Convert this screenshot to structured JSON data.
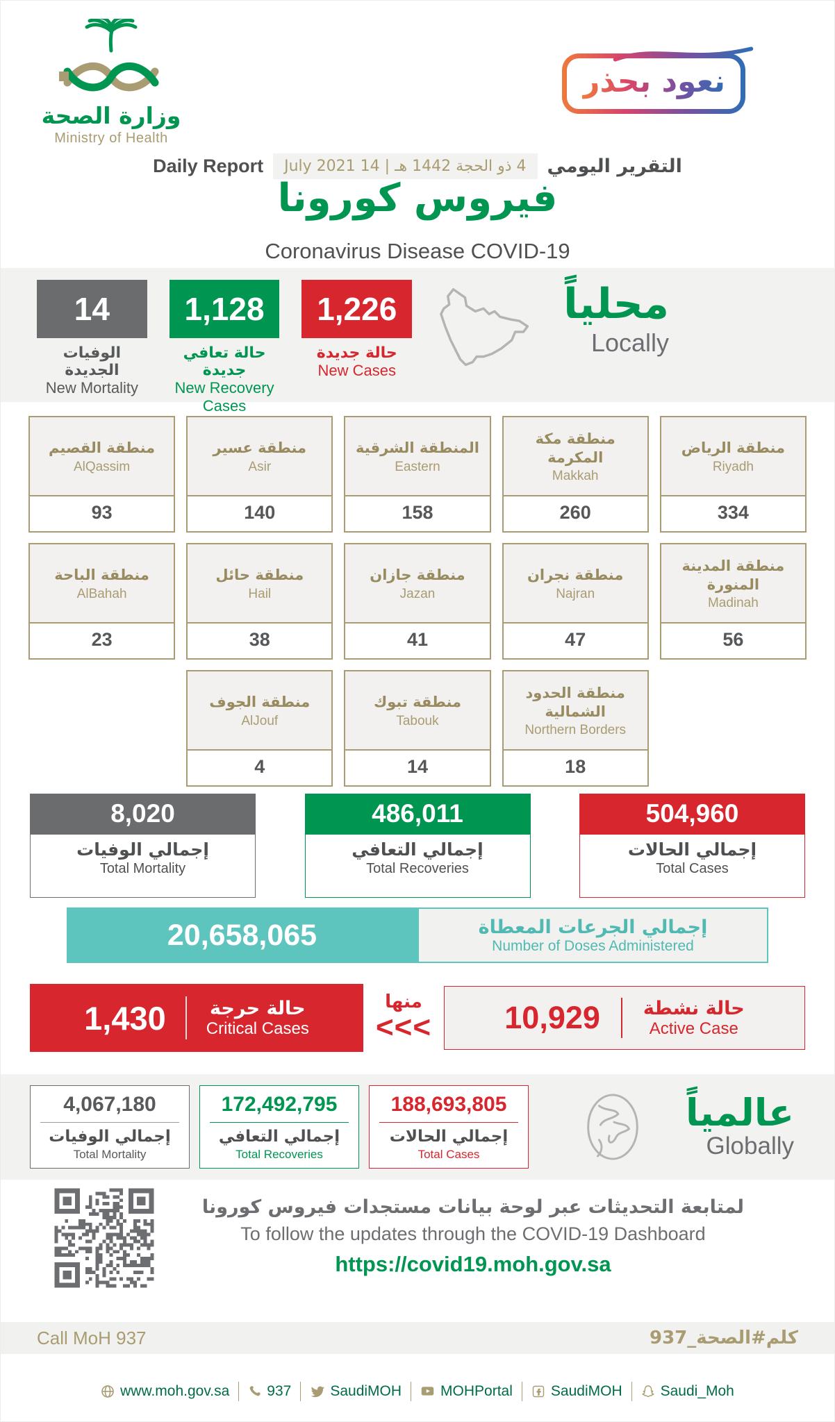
{
  "colors": {
    "green": "#009551",
    "red": "#d7262d",
    "gray": "#6b6c6e",
    "teal": "#5ec4be",
    "gold": "#a99c72"
  },
  "header": {
    "ministry_ar": "وزارة الصحة",
    "ministry_en": "Ministry of Health",
    "badge_ar": "نعود بحذر",
    "daily_report_en": "Daily Report",
    "date_text": "4 ذو الحجة 1442 هـ | 14 July 2021",
    "daily_report_ar": "التقرير اليومي",
    "title_ar": "فيروس كورونا",
    "title_en": "Coronavirus Disease COVID-19"
  },
  "locally": {
    "heading_ar": "محلياً",
    "heading_en": "Locally",
    "stats": [
      {
        "value": "14",
        "label_ar": "الوفيات الجديدة",
        "label_en": "New Mortality"
      },
      {
        "value": "1,128",
        "label_ar": "حالة تعافي جديدة",
        "label_en": "New Recovery Cases"
      },
      {
        "value": "1,226",
        "label_ar": "حالة جديدة",
        "label_en": "New Cases"
      }
    ]
  },
  "regions": [
    {
      "name_ar": "منطقة القصيم",
      "name_en": "AlQassim",
      "value": "93"
    },
    {
      "name_ar": "منطقة عسير",
      "name_en": "Asir",
      "value": "140"
    },
    {
      "name_ar": "المنطقة الشرقية",
      "name_en": "Eastern",
      "value": "158"
    },
    {
      "name_ar": "منطقة مكة المكرمة",
      "name_en": "Makkah",
      "value": "260"
    },
    {
      "name_ar": "منطقة الرياض",
      "name_en": "Riyadh",
      "value": "334"
    },
    {
      "name_ar": "منطقة الباحة",
      "name_en": "AlBahah",
      "value": "23"
    },
    {
      "name_ar": "منطقة حائل",
      "name_en": "Hail",
      "value": "38"
    },
    {
      "name_ar": "منطقة جازان",
      "name_en": "Jazan",
      "value": "41"
    },
    {
      "name_ar": "منطقة نجران",
      "name_en": "Najran",
      "value": "47"
    },
    {
      "name_ar": "منطقة المدينة المنورة",
      "name_en": "Madinah",
      "value": "56"
    },
    {
      "name_ar": "منطقة الجوف",
      "name_en": "AlJouf",
      "value": "4"
    },
    {
      "name_ar": "منطقة تبوك",
      "name_en": "Tabouk",
      "value": "14"
    },
    {
      "name_ar": "منطقة الحدود الشمالية",
      "name_en": "Northern Borders",
      "value": "18"
    }
  ],
  "totals": [
    {
      "value": "8,020",
      "label_ar": "إجمالي الوفيات",
      "label_en": "Total Mortality"
    },
    {
      "value": "486,011",
      "label_ar": "إجمالي التعافي",
      "label_en": "Total Recoveries"
    },
    {
      "value": "504,960",
      "label_ar": "إجمالي الحالات",
      "label_en": "Total Cases"
    }
  ],
  "doses": {
    "value": "20,658,065",
    "label_ar": "إجمالي الجرعات المعطاة",
    "label_en": "Number of Doses Administered"
  },
  "critical": {
    "value": "1,430",
    "label_ar": "حالة حرجة",
    "label_en": "Critical Cases"
  },
  "of_which_ar": "منها",
  "chevrons": "<<<",
  "active": {
    "value": "10,929",
    "label_ar": "حالة نشطة",
    "label_en": "Active Case"
  },
  "globally": {
    "heading_ar": "عالمياً",
    "heading_en": "Globally",
    "stats": [
      {
        "value": "4,067,180",
        "label_ar": "إجمالي الوفيات",
        "label_en": "Total Mortality"
      },
      {
        "value": "172,492,795",
        "label_ar": "إجمالي التعافي",
        "label_en": "Total Recoveries"
      },
      {
        "value": "188,693,805",
        "label_ar": "إجمالي الحالات",
        "label_en": "Total Cases"
      }
    ]
  },
  "dashboard": {
    "line_ar": "لمتابعة التحديثات عبر لوحة بيانات مستجدات فيروس كورونا",
    "line_en": "To follow the updates through the COVID-19 Dashboard",
    "url": "https://covid19.moh.gov.sa"
  },
  "footer": {
    "call_en": "Call MoH 937",
    "call_ar": "كلم#الصحة_937",
    "links": [
      {
        "icon": "globe-icon",
        "label": "www.moh.gov.sa"
      },
      {
        "icon": "phone-icon",
        "label": "937"
      },
      {
        "icon": "twitter-icon",
        "label": "SaudiMOH"
      },
      {
        "icon": "youtube-icon",
        "label": "MOHPortal"
      },
      {
        "icon": "facebook-icon",
        "label": "SaudiMOH"
      },
      {
        "icon": "snapchat-icon",
        "label": "Saudi_Moh"
      }
    ]
  }
}
